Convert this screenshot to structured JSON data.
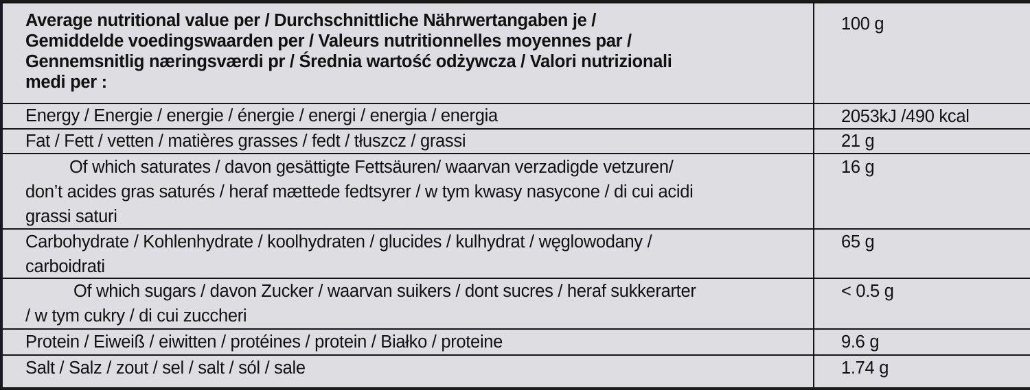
{
  "header": {
    "label_lines": [
      "Average nutritional value per / Durchschnittliche Nährwertangaben je /",
      "Gemiddelde voedingswaarden per / Valeurs nutritionnelles moyennes par /",
      "Gennemsnitlig næringsværdi pr / Średnia wartość odżywcza / Valori nutrizionali",
      "medi per :"
    ],
    "value": "100 g"
  },
  "rows": [
    {
      "lines": [
        "Energy / Energie / energie / énergie / energi / energia / energia"
      ],
      "value": "2053kJ /490 kcal"
    },
    {
      "lines": [
        "Fat / Fett / vetten / matières grasses / fedt / tłuszcz / grassi"
      ],
      "value": "21 g"
    },
    {
      "lines": [
        "Of which saturates / davon gesättigte Fettsäuren/ waarvan verzadigde vetzuren/",
        "don’t acides gras saturés / heraf mættede fedtsyrer / w tym kwasy nasycone / di cui acidi",
        "grassi saturi"
      ],
      "value": "16 g"
    },
    {
      "lines": [
        "Carbohydrate / Kohlenhydrate / koolhydraten / glucides / kulhydrat / węglowodany /",
        "carboidrati"
      ],
      "value": "65 g"
    },
    {
      "lines": [
        "Of which sugars / davon Zucker / waarvan suikers / dont sucres / heraf sukkerarter",
        "/ w tym cukry / di cui zuccheri"
      ],
      "value": "< 0.5 g"
    },
    {
      "lines": [
        "Protein / Eiweiß / eiwitten / protéines / protein / Białko / proteine"
      ],
      "value": "9.6 g"
    },
    {
      "lines": [
        "Salt / Salz / zout / sel / salt / sól / sale"
      ],
      "value": "1.74 g"
    }
  ]
}
